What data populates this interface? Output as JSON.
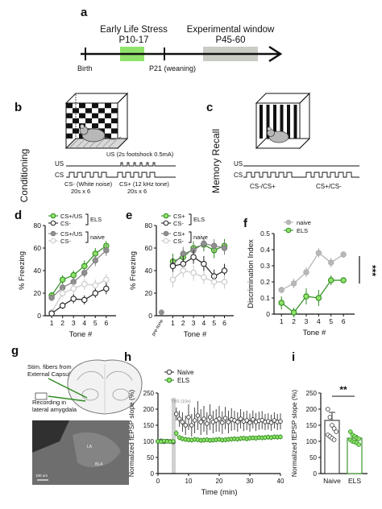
{
  "figure": {
    "panels": {
      "a": {
        "label": "a",
        "els_label_line1": "Early Life Stress",
        "els_label_line2": "P10-17",
        "exp_label_line1": "Experimental window",
        "exp_label_line2": "P45-60",
        "birth_label": "Birth",
        "weaning_label": "P21 (weaning)",
        "colors": {
          "els": "#8fe36a",
          "exp": "#c8ccc4"
        }
      },
      "b": {
        "label": "b",
        "side_label": "Conditioning",
        "us_row": "US",
        "cs_row": "CS",
        "us_note": "US (2s footshock 0.5mA)",
        "csminus_line1": "CS- (White noise)",
        "csminus_line2": "20s x 6",
        "csplus_line1": "CS+ (12 kHz tone)",
        "csplus_line2": "20s x 6"
      },
      "c": {
        "label": "c",
        "side_label": "Memory Recall",
        "us_row": "US",
        "cs_row": "CS",
        "seq1": "CS-/CS+",
        "seq2": "CS+/CS-"
      },
      "g": {
        "label": "g",
        "stim_line1": "Stim. fibers from",
        "stim_line2": "External Capsule",
        "rec_line1": "Recording in",
        "rec_line2": "lateral amygdala",
        "scalebar": "100 um",
        "micro_label1": "LA",
        "micro_label2": "BLA"
      }
    },
    "chart_data": [
      {
        "panel": "d",
        "type": "line",
        "xlabel": "Tone #",
        "ylabel": "% Freezing",
        "x": [
          1,
          2,
          3,
          4,
          5,
          6
        ],
        "ylim": [
          0,
          80
        ],
        "yticks": [
          0,
          20,
          40,
          60,
          80
        ],
        "legend": [
          {
            "name": "CS+/US",
            "group": "ELS"
          },
          {
            "name": "CS-",
            "group": "ELS"
          },
          {
            "name": "CS+/US",
            "group": "naive"
          },
          {
            "name": "CS-",
            "group": "naive"
          }
        ],
        "legend_groups": [
          "ELS",
          "naive"
        ],
        "series": [
          {
            "name": "CS+/US",
            "group": "ELS",
            "color": "#2e8b1e",
            "fill": "#8fe36a",
            "values": [
              18,
              32,
              36,
              44,
              55,
              62
            ],
            "errors": [
              3,
              4,
              4,
              5,
              5,
              4
            ]
          },
          {
            "name": "CS+/US",
            "group": "naive",
            "color": "#808080",
            "fill": "#909090",
            "values": [
              16,
              25,
              30,
              38,
              49,
              58
            ],
            "errors": [
              3,
              4,
              4,
              4,
              5,
              5
            ]
          },
          {
            "name": "CS-",
            "group": "naive",
            "color": "#c8c8c8",
            "fill": "#ffffff",
            "values": [
              3,
              20,
              24,
              28,
              27,
              32
            ],
            "errors": [
              3,
              4,
              5,
              5,
              5,
              5
            ]
          },
          {
            "name": "CS-",
            "group": "ELS",
            "color": "#222222",
            "fill": "#ffffff",
            "values": [
              2,
              9,
              15,
              14,
              20,
              24
            ],
            "errors": [
              2,
              3,
              4,
              4,
              4,
              5
            ]
          }
        ]
      },
      {
        "panel": "e",
        "type": "line",
        "xlabel": "Tone #",
        "ylabel": "% Freezing",
        "x": [
          1,
          2,
          3,
          4,
          5,
          6
        ],
        "xtick_extra": "pre-tone",
        "ylim": [
          0,
          80
        ],
        "yticks": [
          0,
          20,
          40,
          60,
          80
        ],
        "legend": [
          {
            "name": "CS+",
            "group": "ELS"
          },
          {
            "name": "CS-",
            "group": "ELS"
          },
          {
            "name": "CS+",
            "group": "naive"
          },
          {
            "name": "CS-",
            "group": "naive"
          }
        ],
        "legend_groups": [
          "ELS",
          "naive"
        ],
        "pretone": {
          "value": 3,
          "color": "#909090"
        },
        "series": [
          {
            "name": "CS+",
            "group": "ELS",
            "color": "#2e8b1e",
            "fill": "#8fe36a",
            "values": [
              48,
              52,
              60,
              63,
              58,
              62
            ],
            "errors": [
              7,
              6,
              6,
              6,
              7,
              6
            ]
          },
          {
            "name": "CS+",
            "group": "naive",
            "color": "#808080",
            "fill": "#909090",
            "values": [
              45,
              55,
              58,
              64,
              62,
              60
            ],
            "errors": [
              7,
              6,
              6,
              5,
              6,
              6
            ]
          },
          {
            "name": "CS-",
            "group": "ELS",
            "color": "#222222",
            "fill": "#ffffff",
            "values": [
              44,
              46,
              52,
              46,
              35,
              40
            ],
            "errors": [
              7,
              7,
              6,
              7,
              6,
              6
            ]
          },
          {
            "name": "CS-",
            "group": "naive",
            "color": "#c8c8c8",
            "fill": "#ffffff",
            "values": [
              32,
              40,
              38,
              34,
              30,
              30
            ],
            "errors": [
              7,
              6,
              7,
              6,
              6,
              6
            ]
          }
        ]
      },
      {
        "panel": "f",
        "type": "line",
        "xlabel": "Tone #",
        "ylabel": "Discrimination Index",
        "x": [
          1,
          2,
          3,
          4,
          5,
          6
        ],
        "ylim": [
          0,
          0.5
        ],
        "yticks": [
          0,
          0.1,
          0.2,
          0.3,
          0.4,
          0.5
        ],
        "significance": "***",
        "series": [
          {
            "name": "naive",
            "color": "#b0b0b0",
            "fill": "#b8b8b8",
            "values": [
              0.15,
              0.19,
              0.26,
              0.38,
              0.32,
              0.37
            ],
            "errors": [
              0.02,
              0.03,
              0.03,
              0.03,
              0.03,
              0.02
            ]
          },
          {
            "name": "ELS",
            "color": "#2e8b1e",
            "fill": "#8fe36a",
            "values": [
              0.07,
              0.01,
              0.11,
              0.1,
              0.21,
              0.21
            ],
            "errors": [
              0.04,
              0.03,
              0.05,
              0.05,
              0.03,
              0.0
            ]
          }
        ]
      },
      {
        "panel": "h",
        "type": "line",
        "xlabel": "Time (min)",
        "ylabel": "Normalized fEPSP slope (%)",
        "xlim": [
          0,
          40
        ],
        "xticks": [
          0,
          10,
          20,
          30,
          40
        ],
        "ylim": [
          0,
          250
        ],
        "yticks": [
          0,
          50,
          100,
          150,
          200,
          250
        ],
        "annotation": "TBS (10x)",
        "tbs_time": 5,
        "series": [
          {
            "name": "Naive",
            "color": "#333333",
            "fill": "#ffffff",
            "x": [
              0,
              1,
              2,
              3,
              4,
              5,
              6,
              7,
              8,
              9,
              10,
              11,
              12,
              13,
              14,
              15,
              16,
              17,
              18,
              19,
              20,
              21,
              22,
              23,
              24,
              25,
              26,
              27,
              28,
              29,
              30,
              31,
              32,
              33,
              34,
              35,
              36,
              37,
              38,
              39,
              40
            ],
            "values": [
              100,
              102,
              99,
              101,
              100,
              98,
              185,
              170,
              160,
              150,
              175,
              150,
              165,
              180,
              160,
              170,
              155,
              175,
              160,
              165,
              170,
              158,
              172,
              160,
              168,
              165,
              160,
              170,
              162,
              165,
              158,
              168,
              160,
              164,
              166,
              160,
              162,
              158,
              165,
              160,
              162
            ],
            "errors": [
              5,
              5,
              5,
              5,
              5,
              5,
              20,
              25,
              30,
              30,
              40,
              35,
              40,
              45,
              40,
              40,
              35,
              40,
              35,
              35,
              40,
              35,
              35,
              35,
              35,
              30,
              30,
              30,
              30,
              30,
              28,
              28,
              28,
              28,
              28,
              25,
              25,
              25,
              25,
              25,
              25
            ]
          },
          {
            "name": "ELS",
            "color": "#2e8b1e",
            "fill": "#8fe36a",
            "x": [
              0,
              1,
              2,
              3,
              4,
              5,
              6,
              7,
              8,
              9,
              10,
              11,
              12,
              13,
              14,
              15,
              16,
              17,
              18,
              19,
              20,
              21,
              22,
              23,
              24,
              25,
              26,
              27,
              28,
              29,
              30,
              31,
              32,
              33,
              34,
              35,
              36,
              37,
              38,
              39,
              40
            ],
            "values": [
              100,
              99,
              101,
              100,
              99,
              100,
              125,
              112,
              108,
              106,
              105,
              104,
              106,
              105,
              103,
              104,
              105,
              103,
              104,
              105,
              106,
              104,
              105,
              106,
              107,
              108,
              107,
              109,
              110,
              108,
              110,
              111,
              110,
              112,
              111,
              112,
              113,
              112,
              114,
              113,
              114
            ],
            "errors": [
              4,
              4,
              4,
              4,
              4,
              4,
              10,
              8,
              8,
              8,
              8,
              8,
              8,
              8,
              8,
              8,
              8,
              8,
              8,
              8,
              8,
              8,
              8,
              8,
              8,
              8,
              8,
              8,
              8,
              8,
              8,
              8,
              8,
              8,
              8,
              8,
              8,
              8,
              8,
              8,
              8
            ]
          }
        ]
      },
      {
        "panel": "i",
        "type": "bar",
        "ylabel": "Normalized fEPSP slope (%)",
        "categories": [
          "Naive",
          "ELS"
        ],
        "ylim": [
          0,
          250
        ],
        "yticks": [
          0,
          50,
          100,
          150,
          200,
          250
        ],
        "significance": "**",
        "series": [
          {
            "name": "Naive",
            "color": "#333333",
            "fill": "#ffffff",
            "mean": 165,
            "error": 25,
            "points": [
              200,
              175,
              150,
              140,
              130,
              120,
              115,
              110,
              105
            ]
          },
          {
            "name": "ELS",
            "color": "#2e8b1e",
            "fill": "#8fe36a",
            "mean": 110,
            "error": 8,
            "points": [
              130,
              120,
              115,
              110,
              108,
              105,
              100,
              98,
              95,
              90
            ]
          }
        ]
      }
    ]
  }
}
